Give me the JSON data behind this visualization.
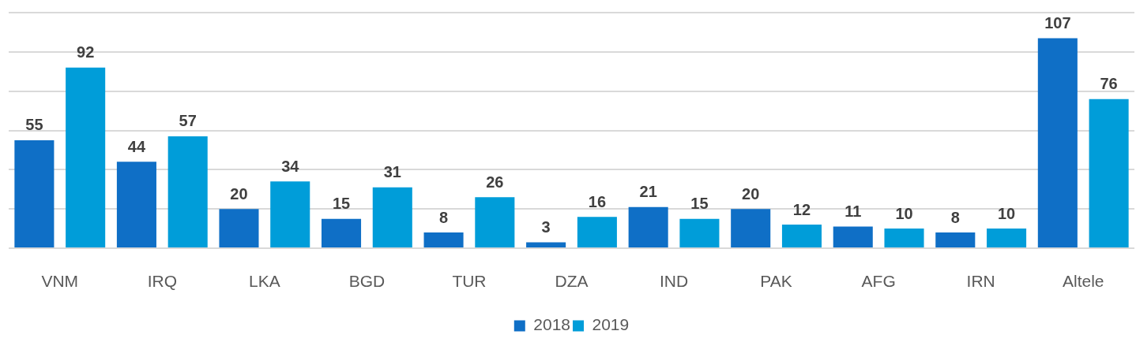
{
  "chart_data": {
    "type": "bar",
    "categories": [
      "VNM",
      "IRQ",
      "LKA",
      "BGD",
      "TUR",
      "DZA",
      "IND",
      "PAK",
      "AFG",
      "IRN",
      "Altele"
    ],
    "series": [
      {
        "name": "2018",
        "color": "#0f6fc6",
        "values": [
          55,
          44,
          20,
          15,
          8,
          3,
          21,
          20,
          11,
          8,
          107
        ]
      },
      {
        "name": "2019",
        "color": "#009dd9",
        "values": [
          92,
          57,
          34,
          31,
          26,
          16,
          15,
          12,
          10,
          10,
          76
        ]
      }
    ],
    "ylim": [
      0,
      120
    ],
    "yticks": [
      0,
      20,
      40,
      60,
      80,
      100,
      120
    ],
    "grid": "y",
    "legend": "bottom",
    "data_labels": true,
    "tick_labels": "x"
  }
}
